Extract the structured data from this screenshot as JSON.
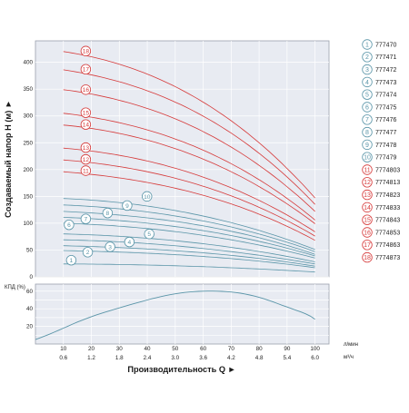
{
  "chart_data": [
    {
      "type": "line",
      "ylabel": "Создаваемый напор H (м) ►",
      "ylim": [
        0,
        440
      ],
      "y_ticks": [
        "0",
        "50",
        "100",
        "150",
        "200",
        "250",
        "300",
        "350",
        "400"
      ],
      "x_ticks": [
        "10",
        "20",
        "30",
        "40",
        "50",
        "60",
        "70",
        "80",
        "90",
        "100"
      ],
      "x_ticks2": [
        "0.6",
        "1.2",
        "1.8",
        "2.4",
        "3.0",
        "3.6",
        "4.2",
        "4.8",
        "5.4",
        "6.0"
      ],
      "xlim": [
        0,
        105
      ],
      "grid": true,
      "x_unit1": "л/мин",
      "x_unit2": "м³/ч",
      "xlabel": "Производительность Q ►",
      "series": [
        {
          "name": "1",
          "code": "777470",
          "color": "blue",
          "x": [
            10,
            40,
            70,
            100
          ],
          "values": [
            24,
            22,
            17,
            9
          ]
        },
        {
          "name": "2",
          "code": "777471",
          "color": "blue",
          "x": [
            10,
            40,
            70,
            100
          ],
          "values": [
            49,
            44,
            34,
            17
          ]
        },
        {
          "name": "3",
          "code": "777472",
          "color": "blue",
          "x": [
            10,
            40,
            70,
            100
          ],
          "values": [
            58,
            52,
            40,
            20
          ]
        },
        {
          "name": "4",
          "code": "777473",
          "color": "blue",
          "x": [
            10,
            40,
            70,
            100
          ],
          "values": [
            69,
            62,
            47,
            24
          ]
        },
        {
          "name": "5",
          "code": "777474",
          "color": "blue",
          "x": [
            10,
            40,
            70,
            100
          ],
          "values": [
            80,
            72,
            55,
            28
          ]
        },
        {
          "name": "6",
          "code": "777475",
          "color": "blue",
          "x": [
            10,
            40,
            70,
            100
          ],
          "values": [
            100,
            90,
            69,
            35
          ]
        },
        {
          "name": "7",
          "code": "777476",
          "color": "blue",
          "x": [
            10,
            40,
            70,
            100
          ],
          "values": [
            111,
            100,
            77,
            39
          ]
        },
        {
          "name": "8",
          "code": "777477",
          "color": "blue",
          "x": [
            10,
            40,
            70,
            100
          ],
          "values": [
            122,
            110,
            85,
            42
          ]
        },
        {
          "name": "9",
          "code": "777478",
          "color": "blue",
          "x": [
            10,
            40,
            70,
            100
          ],
          "values": [
            134,
            121,
            93,
            47
          ]
        },
        {
          "name": "10",
          "code": "777479",
          "color": "blue",
          "x": [
            10,
            40,
            70,
            100
          ],
          "values": [
            146,
            132,
            101,
            51
          ]
        },
        {
          "name": "11",
          "code": "7774803",
          "color": "red",
          "x": [
            10,
            40,
            70,
            100
          ],
          "values": [
            196,
            176,
            136,
            68
          ]
        },
        {
          "name": "12",
          "code": "7774813",
          "color": "red",
          "x": [
            10,
            40,
            70,
            100
          ],
          "values": [
            218,
            196,
            151,
            76
          ]
        },
        {
          "name": "13",
          "code": "7774823",
          "color": "red",
          "x": [
            10,
            40,
            70,
            100
          ],
          "values": [
            240,
            216,
            166,
            84
          ]
        },
        {
          "name": "14",
          "code": "7774833",
          "color": "red",
          "x": [
            10,
            40,
            70,
            100
          ],
          "values": [
            283,
            255,
            196,
            99
          ]
        },
        {
          "name": "15",
          "code": "7774843",
          "color": "red",
          "x": [
            10,
            40,
            70,
            100
          ],
          "values": [
            305,
            274,
            211,
            106
          ]
        },
        {
          "name": "16",
          "code": "7774853",
          "color": "red",
          "x": [
            10,
            40,
            70,
            100
          ],
          "values": [
            349,
            314,
            242,
            122
          ]
        },
        {
          "name": "17",
          "code": "7774863",
          "color": "red",
          "x": [
            10,
            40,
            70,
            100
          ],
          "values": [
            386,
            347,
            268,
            135
          ]
        },
        {
          "name": "18",
          "code": "7774873",
          "color": "red",
          "x": [
            10,
            40,
            70,
            100
          ],
          "values": [
            420,
            378,
            291,
            147
          ]
        }
      ],
      "curve_labels": [
        {
          "n": "1",
          "x": 12.8,
          "y": 31
        },
        {
          "n": "2",
          "x": 18.7,
          "y": 46
        },
        {
          "name_note": "",
          "n": "3",
          "x": 26.7,
          "y": 56
        },
        {
          "n": "4",
          "x": 33.6,
          "y": 65
        },
        {
          "n": "5",
          "x": 40.7,
          "y": 80
        },
        {
          "n": "6",
          "x": 12.0,
          "y": 97
        },
        {
          "n": "7",
          "x": 18.0,
          "y": 108
        },
        {
          "n": "8",
          "x": 25.8,
          "y": 119
        },
        {
          "n": "9",
          "x": 32.8,
          "y": 133
        },
        {
          "n": "10",
          "x": 39.9,
          "y": 150
        },
        {
          "n": "11",
          "x": 18.0,
          "y": 198
        },
        {
          "n": "12",
          "x": 18.0,
          "y": 219
        },
        {
          "n": "13",
          "x": 18.0,
          "y": 241
        },
        {
          "n": "14",
          "x": 18.0,
          "y": 284
        },
        {
          "n": "15",
          "x": 18.0,
          "y": 306
        },
        {
          "n": "16",
          "x": 18.0,
          "y": 349
        },
        {
          "n": "17",
          "x": 18.0,
          "y": 387
        },
        {
          "n": "18",
          "x": 18.0,
          "y": 421
        }
      ],
      "colors": {
        "blue": "#5a95a8",
        "red": "#d63a3a",
        "plot_bg": "#e8ebf2"
      }
    },
    {
      "type": "line",
      "ylabel": "КПД (%)",
      "ylim": [
        0,
        68
      ],
      "y_ticks": [
        "20",
        "40",
        "60"
      ],
      "series": [
        {
          "name": "",
          "x": [
            0,
            10,
            20,
            30,
            40,
            50,
            60,
            70,
            80,
            90,
            100
          ],
          "values": [
            5,
            18,
            31,
            41,
            50,
            57,
            60,
            59,
            53,
            42,
            28
          ]
        }
      ]
    }
  ]
}
